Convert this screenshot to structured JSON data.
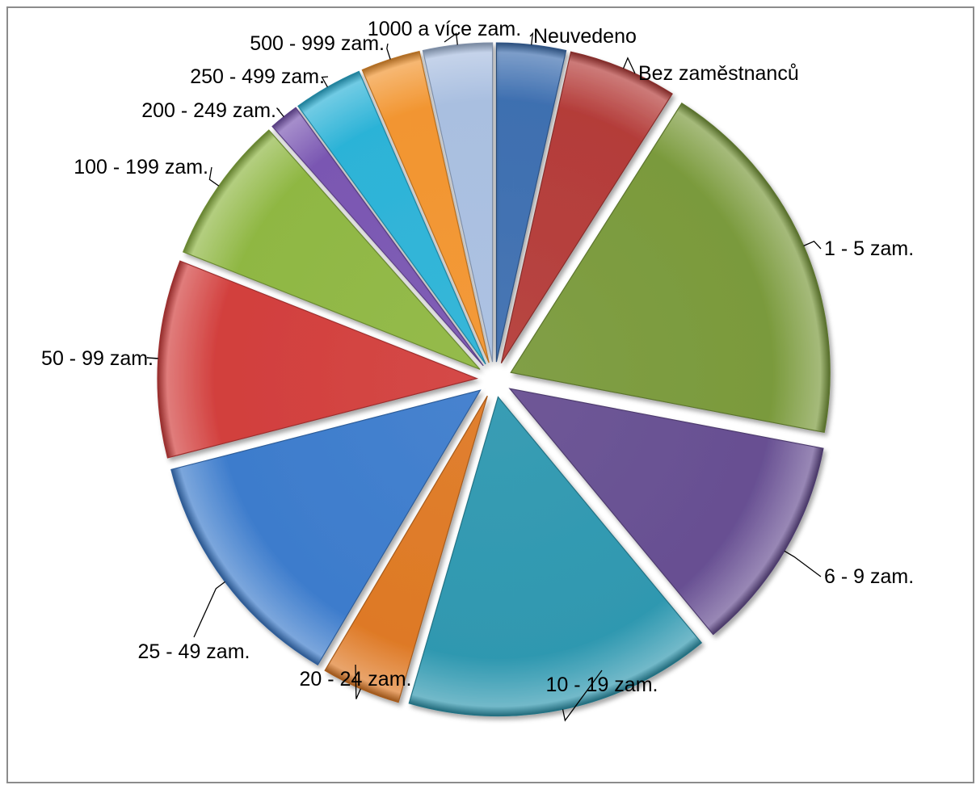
{
  "chart_data": {
    "type": "pie",
    "style": "exploded-3d",
    "legend": "none",
    "title": "",
    "slices": [
      {
        "label": "Neuvedeno",
        "value": 3.5,
        "color": "#3e6fb0"
      },
      {
        "label": "Bez zaměstnanců",
        "value": 5.5,
        "color": "#b43c39"
      },
      {
        "label": "1 - 5 zam.",
        "value": 19.0,
        "color": "#7a9a3c"
      },
      {
        "label": "6 - 9 zam.",
        "value": 11.0,
        "color": "#674f92"
      },
      {
        "label": "10 - 19 zam.",
        "value": 15.5,
        "color": "#2f98b0"
      },
      {
        "label": "20 - 24 zam.",
        "value": 4.0,
        "color": "#de7925"
      },
      {
        "label": "25 - 49 zam.",
        "value": 12.5,
        "color": "#3d7ccc"
      },
      {
        "label": "50 - 99 zam.",
        "value": 10.0,
        "color": "#d23f3d"
      },
      {
        "label": "100 - 199 zam.",
        "value": 7.5,
        "color": "#8fb743"
      },
      {
        "label": "200 - 249 zam.",
        "value": 1.5,
        "color": "#7a57b2"
      },
      {
        "label": "250 - 499 zam.",
        "value": 3.5,
        "color": "#2cb3d7"
      },
      {
        "label": "500 - 999 zam.",
        "value": 3.0,
        "color": "#f29530"
      },
      {
        "label": "1000 a více zam.",
        "value": 3.5,
        "color": "#a9bfe0"
      }
    ]
  }
}
